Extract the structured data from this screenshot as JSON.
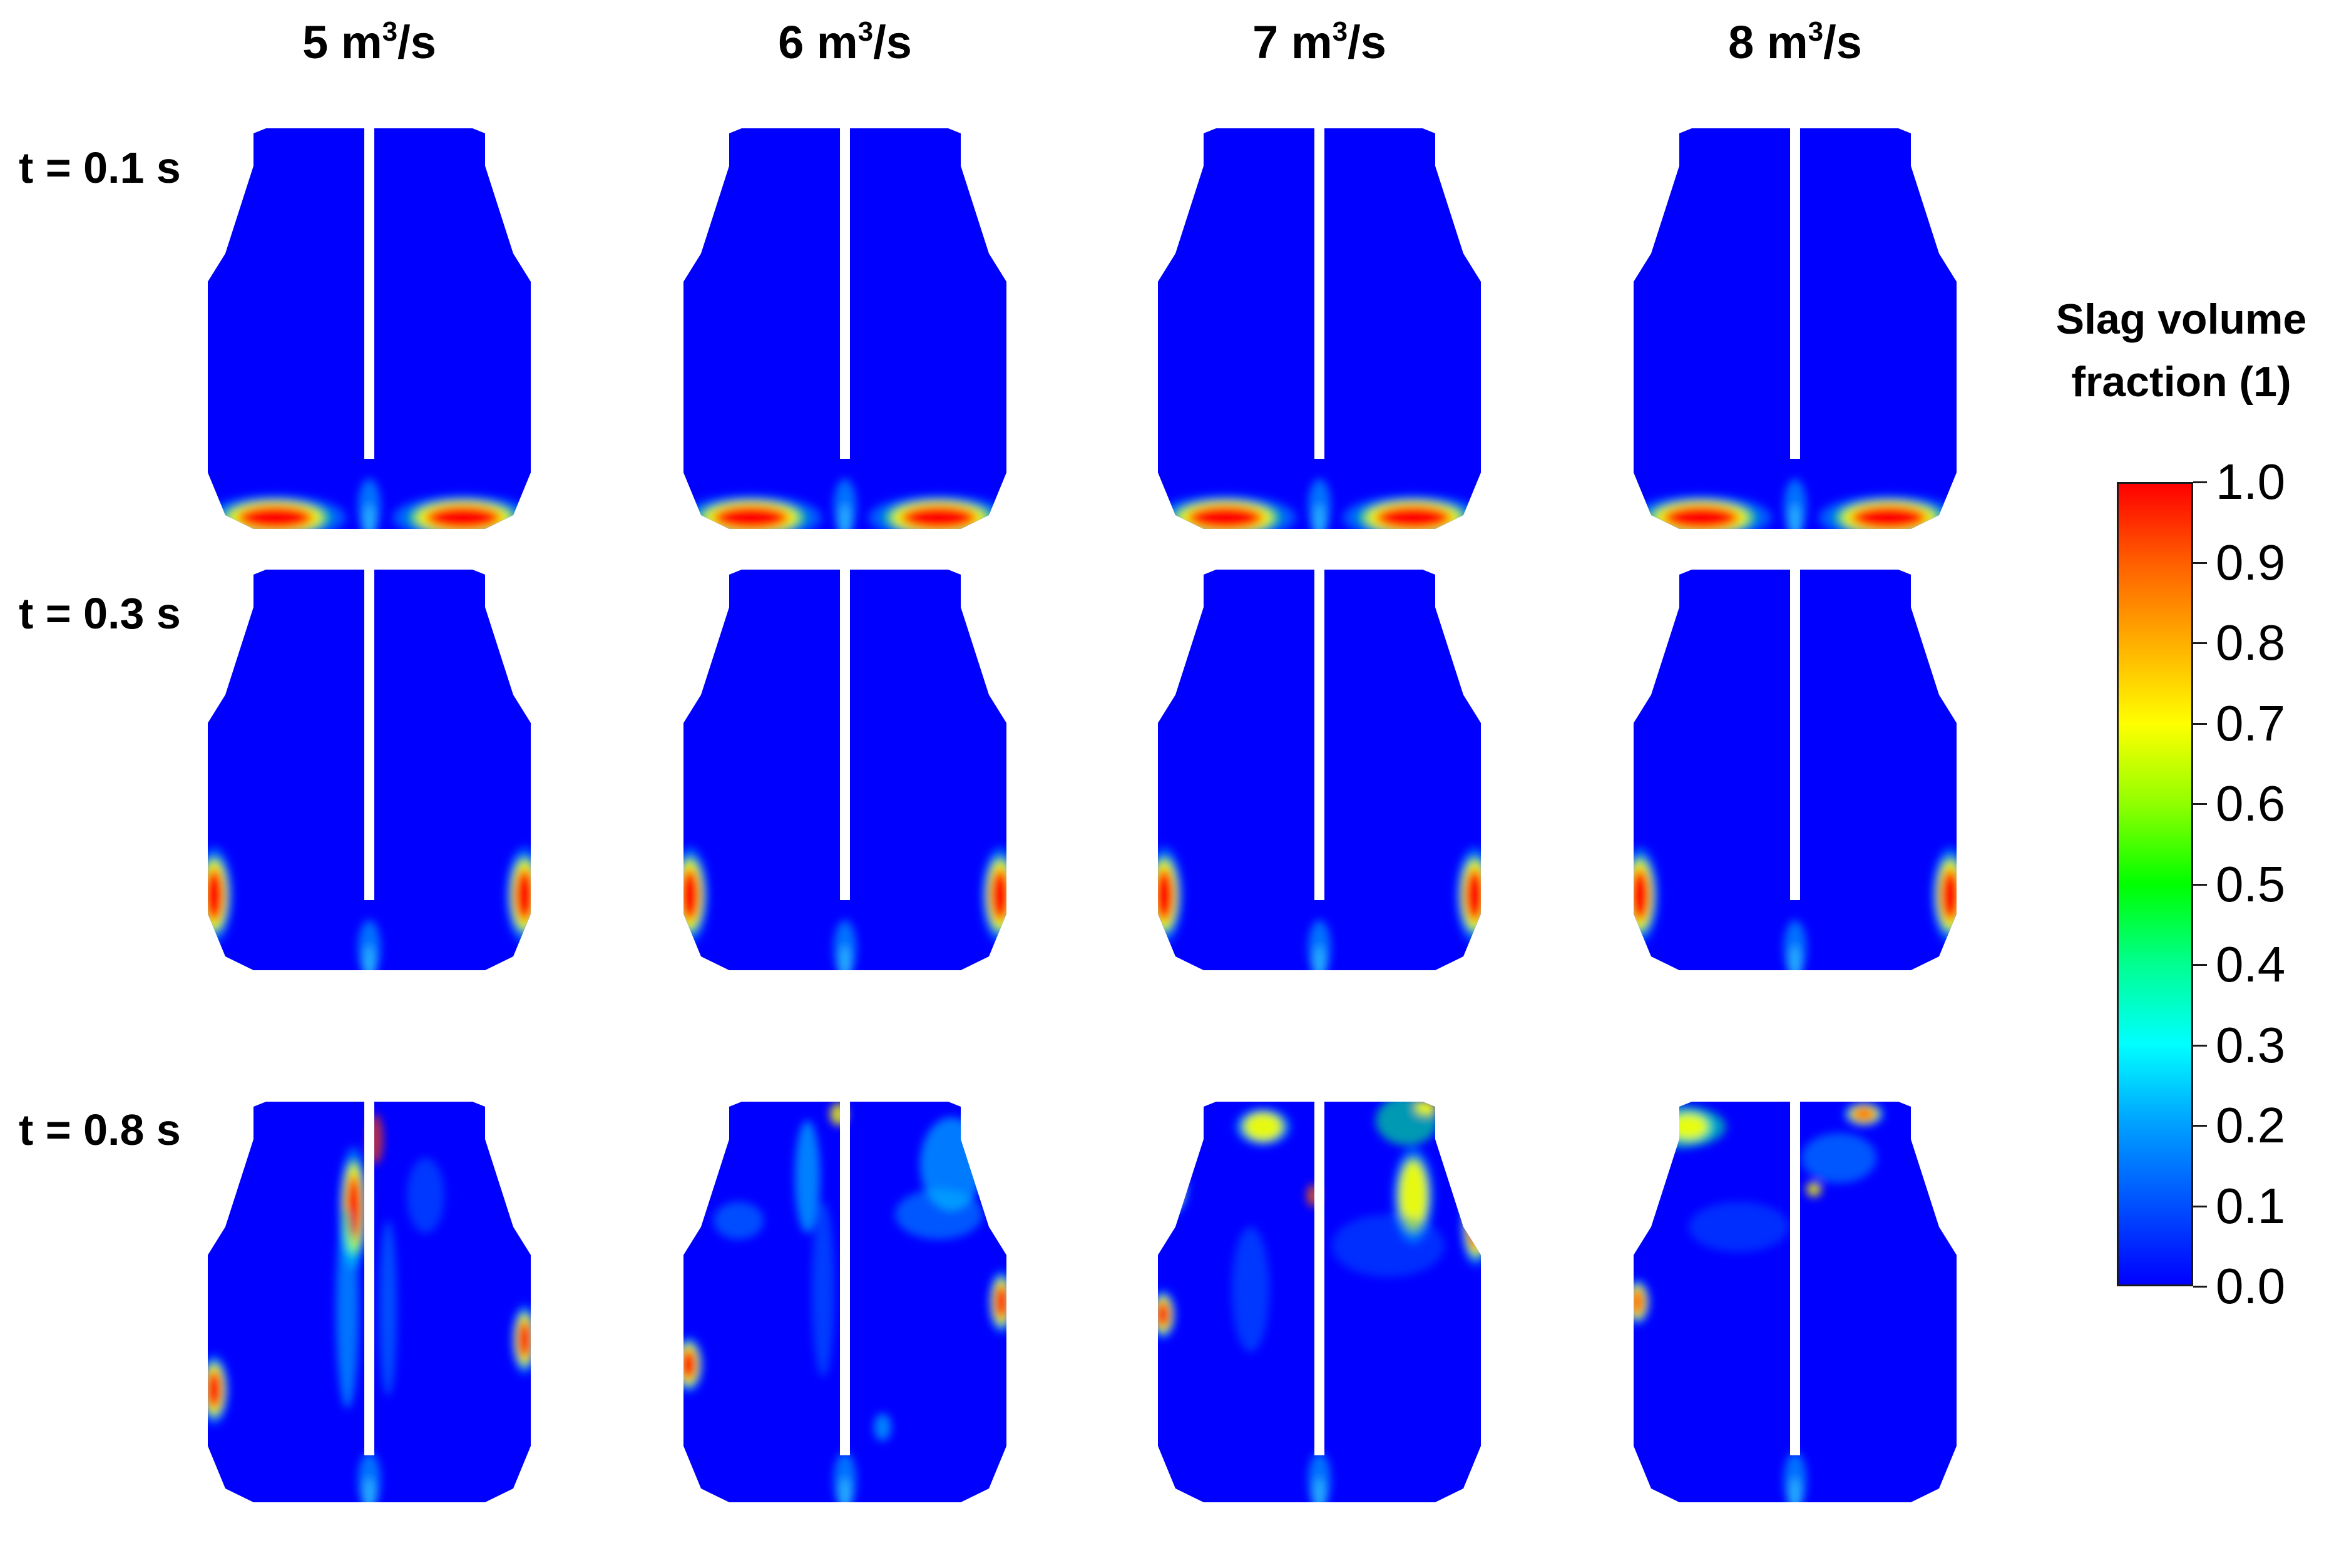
{
  "columns": [
    {
      "label": "5 m",
      "sup": "3",
      "unit": "/s"
    },
    {
      "label": "6 m",
      "sup": "3",
      "unit": "/s"
    },
    {
      "label": "7 m",
      "sup": "3",
      "unit": "/s"
    },
    {
      "label": "8 m",
      "sup": "3",
      "unit": "/s"
    }
  ],
  "rows": [
    {
      "label": "t = 0.1 s"
    },
    {
      "label": "t = 0.3 s"
    },
    {
      "label": "t = 0.8 s"
    }
  ],
  "legend": {
    "title_line1": "Slag volume",
    "title_line2": "fraction (1)",
    "ticks": [
      "1.0",
      "0.9",
      "0.8",
      "0.7",
      "0.6",
      "0.5",
      "0.4",
      "0.3",
      "0.2",
      "0.1",
      "0.0"
    ],
    "colormap": [
      "#0000ff",
      "#00a0ff",
      "#00ffff",
      "#00ff00",
      "#ffff00",
      "#ff6000",
      "#ff0000"
    ]
  }
}
